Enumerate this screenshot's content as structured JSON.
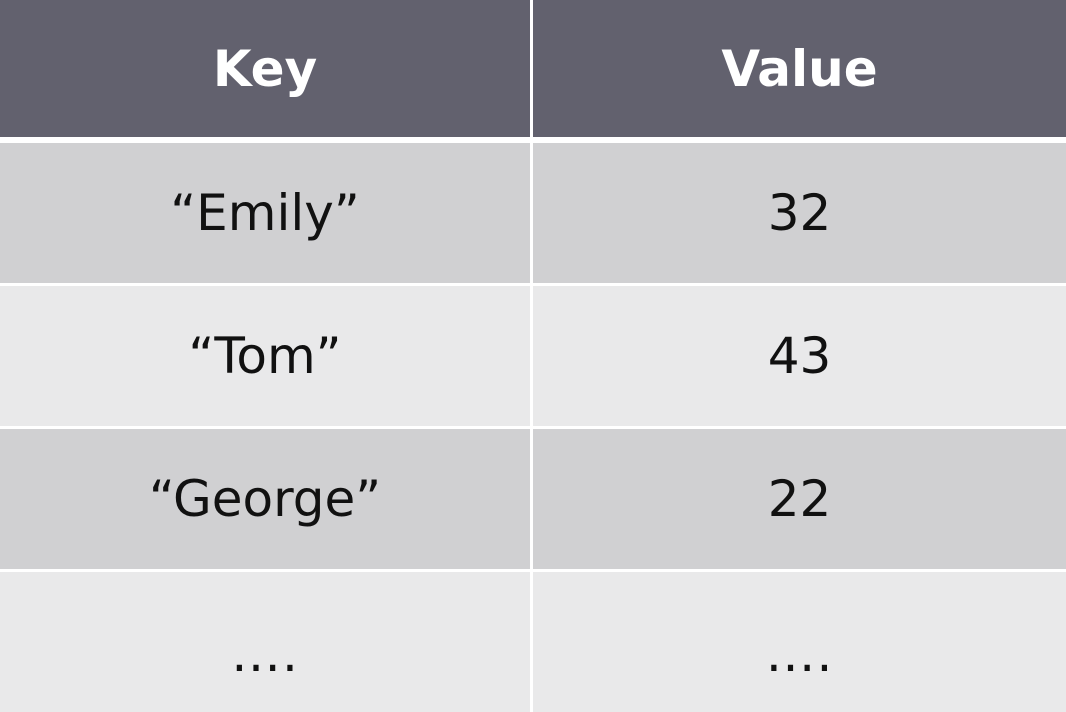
{
  "table": {
    "headers": {
      "key": "Key",
      "value": "Value"
    },
    "rows": [
      {
        "key": "“Emily”",
        "value": "32"
      },
      {
        "key": "“Tom”",
        "value": "43"
      },
      {
        "key": "“George”",
        "value": "22"
      },
      {
        "key": "….",
        "value": "…."
      }
    ],
    "colors": {
      "header_bg": "#62616e",
      "header_text": "#ffffff",
      "row_dark": "#d0d0d2",
      "row_light": "#e9e9ea",
      "cell_text": "#111111"
    }
  }
}
